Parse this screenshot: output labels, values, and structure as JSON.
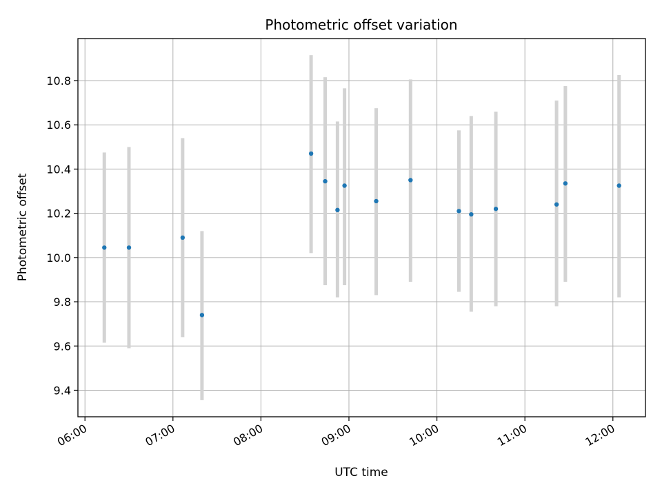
{
  "chart_data": {
    "type": "scatter",
    "title": "Photometric offset variation",
    "xlabel": "UTC time",
    "ylabel": "Photometric offset",
    "x_tick_labels": [
      "06:00",
      "07:00",
      "08:00",
      "09:00",
      "10:00",
      "11:00",
      "12:00"
    ],
    "x_tick_hours": [
      6,
      7,
      8,
      9,
      10,
      11,
      12
    ],
    "y_ticks": [
      9.4,
      9.6,
      9.8,
      10.0,
      10.2,
      10.4,
      10.6,
      10.8
    ],
    "y_tick_labels": [
      "9.4",
      "9.6",
      "9.8",
      "10.0",
      "10.2",
      "10.4",
      "10.6",
      "10.8"
    ],
    "xlim_hours": [
      5.92,
      12.37
    ],
    "ylim": [
      9.28,
      10.99
    ],
    "grid": true,
    "point_color": "#1f77b4",
    "errorbar_color": "#d3d3d3",
    "points": [
      {
        "time": "06:13",
        "hour": 6.22,
        "y": 10.045,
        "low": 9.615,
        "high": 10.475
      },
      {
        "time": "06:30",
        "hour": 6.5,
        "y": 10.045,
        "low": 9.59,
        "high": 10.5
      },
      {
        "time": "07:06",
        "hour": 7.11,
        "y": 10.09,
        "low": 9.64,
        "high": 10.54
      },
      {
        "time": "07:20",
        "hour": 7.33,
        "y": 9.74,
        "low": 9.355,
        "high": 10.12
      },
      {
        "time": "08:34",
        "hour": 8.57,
        "y": 10.47,
        "low": 10.02,
        "high": 10.915
      },
      {
        "time": "08:44",
        "hour": 8.73,
        "y": 10.345,
        "low": 9.875,
        "high": 10.815
      },
      {
        "time": "08:52",
        "hour": 8.87,
        "y": 10.215,
        "low": 9.82,
        "high": 10.615
      },
      {
        "time": "08:57",
        "hour": 8.95,
        "y": 10.325,
        "low": 9.875,
        "high": 10.765
      },
      {
        "time": "09:18",
        "hour": 9.31,
        "y": 10.255,
        "low": 9.83,
        "high": 10.675
      },
      {
        "time": "09:42",
        "hour": 9.7,
        "y": 10.35,
        "low": 9.89,
        "high": 10.805
      },
      {
        "time": "10:15",
        "hour": 10.25,
        "y": 10.21,
        "low": 9.845,
        "high": 10.575
      },
      {
        "time": "10:23",
        "hour": 10.39,
        "y": 10.195,
        "low": 9.755,
        "high": 10.64
      },
      {
        "time": "10:40",
        "hour": 10.67,
        "y": 10.22,
        "low": 9.78,
        "high": 10.66
      },
      {
        "time": "11:22",
        "hour": 11.36,
        "y": 10.24,
        "low": 9.78,
        "high": 10.71
      },
      {
        "time": "11:28",
        "hour": 11.46,
        "y": 10.335,
        "low": 9.89,
        "high": 10.775
      },
      {
        "time": "12:04",
        "hour": 12.07,
        "y": 10.325,
        "low": 9.82,
        "high": 10.825
      }
    ]
  }
}
